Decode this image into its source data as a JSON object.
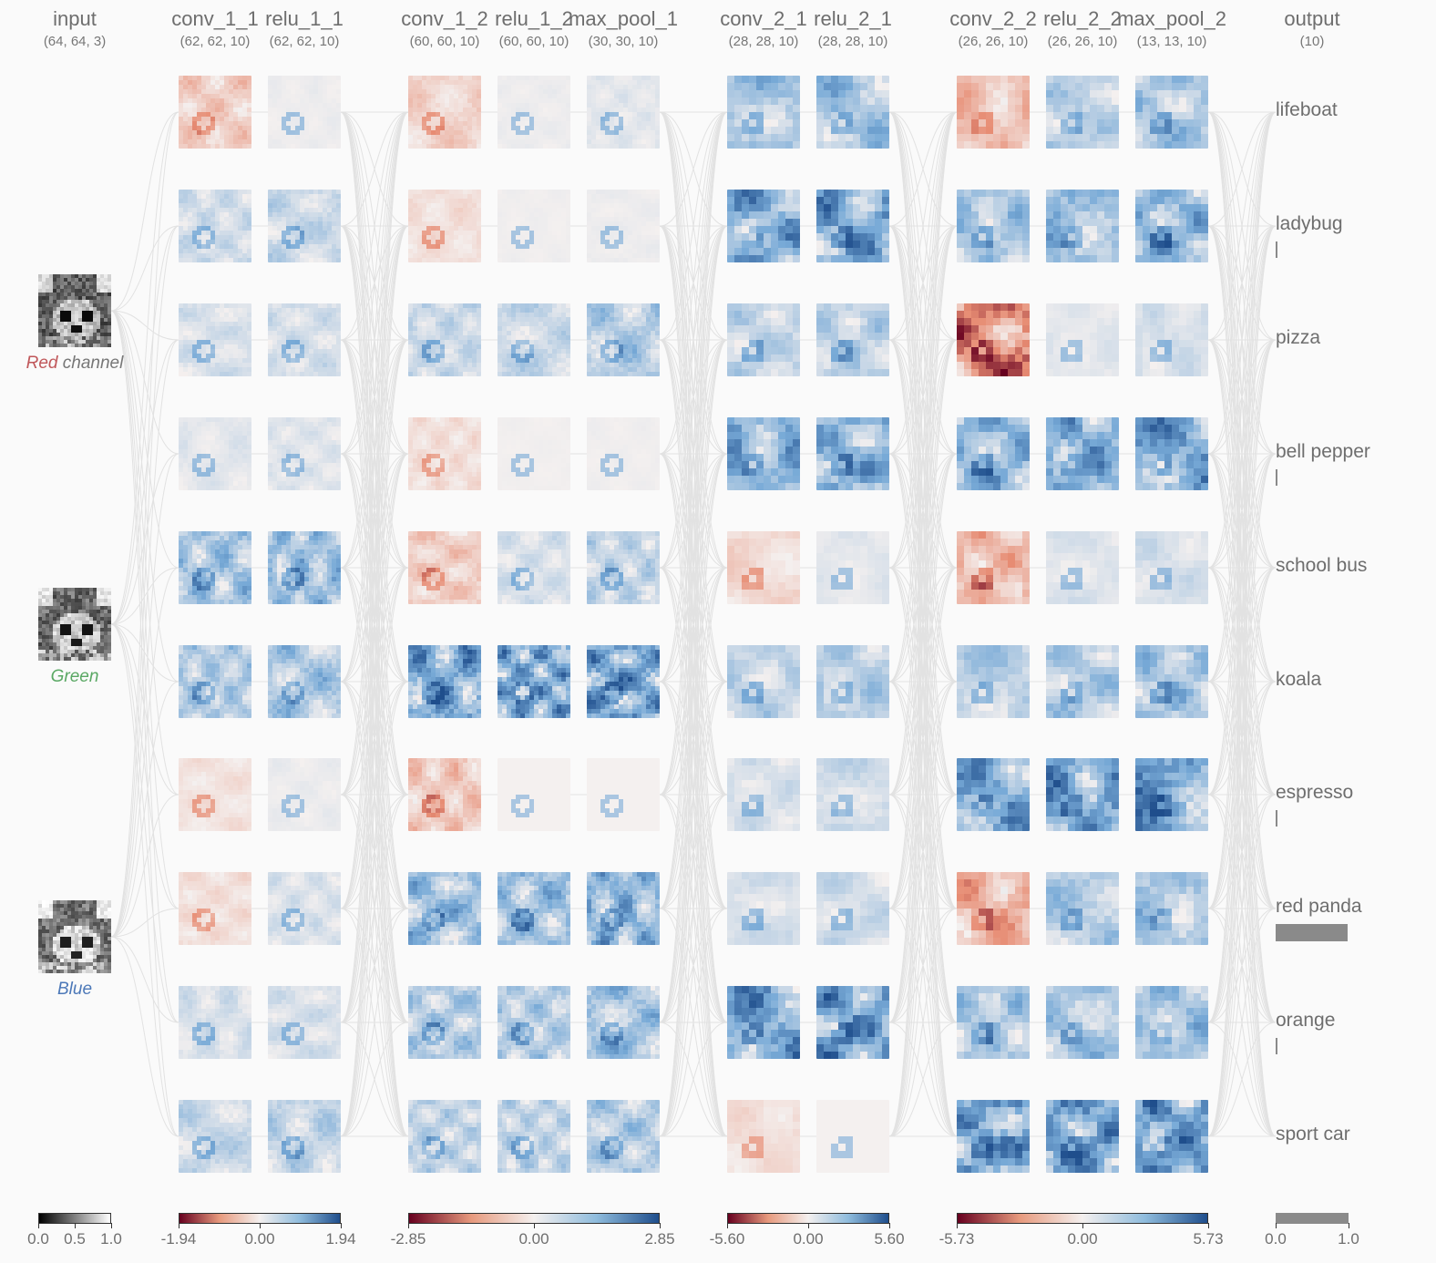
{
  "layers": [
    {
      "name": "input",
      "shape": "(64, 64, 3)"
    },
    {
      "name": "conv_1_1",
      "shape": "(62, 62, 10)"
    },
    {
      "name": "relu_1_1",
      "shape": "(62, 62, 10)"
    },
    {
      "name": "conv_1_2",
      "shape": "(60, 60, 10)"
    },
    {
      "name": "relu_1_2",
      "shape": "(60, 60, 10)"
    },
    {
      "name": "max_pool_1",
      "shape": "(30, 30, 10)"
    },
    {
      "name": "conv_2_1",
      "shape": "(28, 28, 10)"
    },
    {
      "name": "relu_2_1",
      "shape": "(28, 28, 10)"
    },
    {
      "name": "conv_2_2",
      "shape": "(26, 26, 10)"
    },
    {
      "name": "relu_2_2",
      "shape": "(26, 26, 10)"
    },
    {
      "name": "max_pool_2",
      "shape": "(13, 13, 10)"
    },
    {
      "name": "output",
      "shape": "(10)"
    }
  ],
  "channels": [
    {
      "name": "Red",
      "suffix": " channel",
      "color": "#c0575a"
    },
    {
      "name": "Green",
      "suffix": "",
      "color": "#5aa864"
    },
    {
      "name": "Blue",
      "suffix": "",
      "color": "#4c78b8"
    }
  ],
  "classes": [
    {
      "label": "lifeboat",
      "prob": 0.0
    },
    {
      "label": "ladybug",
      "prob": 0.02
    },
    {
      "label": "pizza",
      "prob": 0.0
    },
    {
      "label": "bell pepper",
      "prob": 0.01
    },
    {
      "label": "school bus",
      "prob": 0.0
    },
    {
      "label": "koala",
      "prob": 0.0
    },
    {
      "label": "espresso",
      "prob": 0.02
    },
    {
      "label": "red panda",
      "prob": 0.99
    },
    {
      "label": "orange",
      "prob": 0.01
    },
    {
      "label": "sport car",
      "prob": 0.0
    }
  ],
  "activation_intensity": {
    "conv_1_1": [
      -0.3,
      0.25,
      0.2,
      0.12,
      0.55,
      0.45,
      -0.12,
      -0.15,
      0.2,
      0.3
    ],
    "relu_1_1": [
      0.05,
      0.3,
      0.22,
      0.14,
      0.6,
      0.5,
      0.06,
      0.18,
      0.2,
      0.35
    ],
    "conv_1_2": [
      -0.25,
      -0.15,
      0.3,
      -0.15,
      -0.3,
      0.85,
      -0.35,
      0.6,
      0.45,
      0.35
    ],
    "relu_1_2": [
      0.05,
      0.03,
      0.3,
      0.02,
      0.2,
      0.85,
      0.0,
      0.6,
      0.45,
      0.35
    ],
    "max_pool_1": [
      0.12,
      0.05,
      0.45,
      0.03,
      0.35,
      0.9,
      0.0,
      0.7,
      0.55,
      0.45
    ],
    "conv_2_1": [
      0.5,
      0.8,
      0.35,
      0.7,
      -0.2,
      0.35,
      0.2,
      0.2,
      0.85,
      -0.15
    ],
    "relu_2_1": [
      0.55,
      0.85,
      0.4,
      0.75,
      0.12,
      0.4,
      0.25,
      0.25,
      0.9,
      0.0
    ],
    "conv_2_2": [
      -0.4,
      0.5,
      -0.9,
      0.7,
      -0.45,
      0.4,
      0.85,
      -0.55,
      0.5,
      0.9
    ],
    "relu_2_2": [
      0.4,
      0.65,
      0.12,
      0.8,
      0.15,
      0.45,
      0.85,
      0.45,
      0.5,
      0.95
    ],
    "max_pool_2": [
      0.5,
      0.7,
      0.2,
      0.85,
      0.2,
      0.55,
      0.9,
      0.55,
      0.55,
      0.95
    ]
  },
  "colorbars": [
    {
      "type": "gray",
      "labels": [
        "0.0",
        "0.5",
        "1.0"
      ]
    },
    {
      "type": "diverging",
      "labels": [
        "-1.94",
        "0.00",
        "1.94"
      ]
    },
    {
      "type": "diverging",
      "labels": [
        "-2.85",
        "0.00",
        "2.85"
      ]
    },
    {
      "type": "diverging",
      "labels": [
        "-5.60",
        "0.00",
        "5.60"
      ]
    },
    {
      "type": "diverging",
      "labels": [
        "-5.73",
        "0.00",
        "5.73"
      ]
    },
    {
      "type": "bar",
      "labels": [
        "0.0",
        "1.0"
      ]
    }
  ],
  "colors": {
    "negative": "#67001f",
    "neutral": "#f4f0ef",
    "positive": "#1f4e8c",
    "edge": "#e2e2e2",
    "prob": "#8a8a8a"
  }
}
